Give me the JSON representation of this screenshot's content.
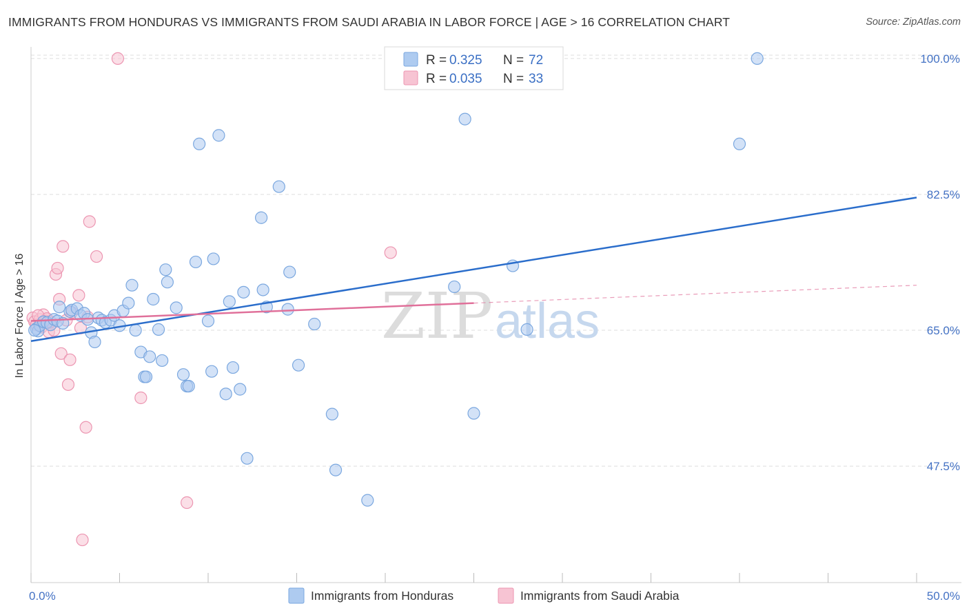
{
  "header": {
    "title": "IMMIGRANTS FROM HONDURAS VS IMMIGRANTS FROM SAUDI ARABIA IN LABOR FORCE | AGE > 16 CORRELATION CHART",
    "source": "Source: ZipAtlas.com"
  },
  "watermark": {
    "zip": "ZIP",
    "atlas": "atlas"
  },
  "legend_top": {
    "r_label": "R =",
    "n_label": "N =",
    "rows": [
      {
        "r": "0.325",
        "n": "72"
      },
      {
        "r": "0.035",
        "n": "33"
      }
    ]
  },
  "chart_data": {
    "type": "scatter",
    "title": "IMMIGRANTS FROM HONDURAS VS IMMIGRANTS FROM SAUDI ARABIA IN LABOR FORCE | AGE > 16 CORRELATION CHART",
    "xlabel": "",
    "ylabel": "In Labor Force | Age > 16",
    "xlim": [
      0,
      50
    ],
    "ylim": [
      32.5,
      101.5
    ],
    "x_tick_labels": [
      "0.0%",
      "50.0%"
    ],
    "y_ticks": [
      47.5,
      65.0,
      82.5,
      100.0
    ],
    "y_tick_labels": [
      "47.5%",
      "65.0%",
      "82.5%",
      "100.0%"
    ],
    "grid": true,
    "legend_position": "top-center",
    "colors": {
      "honduras_fill": "#aecbf0",
      "honduras_stroke": "#7aa7df",
      "honduras_line": "#2a6dcb",
      "saudi_fill": "#f7c4d3",
      "saudi_stroke": "#ec95b1",
      "saudi_line": "#e0709a"
    },
    "series": [
      {
        "name": "Immigrants from Honduras",
        "r": 0.325,
        "n": 72,
        "trend": {
          "x": [
            0,
            50
          ],
          "y": [
            63.6,
            82.1
          ]
        },
        "points": [
          [
            0.3,
            65.2
          ],
          [
            0.4,
            64.9
          ],
          [
            0.5,
            65.6
          ],
          [
            0.7,
            66.1
          ],
          [
            0.9,
            66.0
          ],
          [
            1.1,
            65.7
          ],
          [
            1.3,
            66.4
          ],
          [
            1.5,
            66.2
          ],
          [
            1.6,
            68.0
          ],
          [
            1.8,
            65.9
          ],
          [
            2.2,
            67.4
          ],
          [
            2.3,
            67.6
          ],
          [
            2.6,
            67.8
          ],
          [
            2.8,
            66.9
          ],
          [
            3.0,
            67.2
          ],
          [
            3.2,
            66.4
          ],
          [
            3.4,
            64.7
          ],
          [
            3.6,
            63.5
          ],
          [
            3.8,
            66.6
          ],
          [
            4.0,
            66.3
          ],
          [
            4.2,
            66.0
          ],
          [
            4.5,
            66.3
          ],
          [
            4.7,
            66.9
          ],
          [
            5.0,
            65.6
          ],
          [
            5.2,
            67.5
          ],
          [
            5.5,
            68.5
          ],
          [
            5.7,
            70.8
          ],
          [
            5.9,
            65.0
          ],
          [
            6.2,
            62.2
          ],
          [
            6.4,
            59.0
          ],
          [
            6.5,
            59.0
          ],
          [
            6.7,
            61.6
          ],
          [
            6.9,
            69.0
          ],
          [
            7.2,
            65.1
          ],
          [
            7.4,
            61.1
          ],
          [
            7.6,
            72.8
          ],
          [
            7.7,
            71.2
          ],
          [
            8.2,
            67.9
          ],
          [
            8.6,
            59.3
          ],
          [
            8.8,
            57.8
          ],
          [
            8.9,
            57.8
          ],
          [
            9.3,
            73.8
          ],
          [
            9.5,
            89.0
          ],
          [
            10.0,
            66.2
          ],
          [
            10.2,
            59.7
          ],
          [
            10.3,
            74.2
          ],
          [
            10.6,
            90.1
          ],
          [
            11.0,
            56.8
          ],
          [
            11.2,
            68.7
          ],
          [
            11.4,
            60.2
          ],
          [
            11.8,
            57.4
          ],
          [
            12.0,
            69.9
          ],
          [
            12.2,
            48.5
          ],
          [
            13.0,
            79.5
          ],
          [
            13.1,
            70.2
          ],
          [
            13.3,
            68.0
          ],
          [
            14.0,
            83.5
          ],
          [
            14.5,
            67.7
          ],
          [
            14.6,
            72.5
          ],
          [
            15.1,
            60.5
          ],
          [
            16.0,
            65.8
          ],
          [
            17.0,
            54.2
          ],
          [
            17.2,
            47.0
          ],
          [
            19.0,
            43.1
          ],
          [
            23.9,
            70.6
          ],
          [
            24.5,
            92.2
          ],
          [
            25.0,
            54.3
          ],
          [
            27.2,
            73.3
          ],
          [
            28.0,
            65.1
          ],
          [
            40.0,
            89.0
          ],
          [
            41.0,
            100.0
          ],
          [
            0.2,
            65.0
          ]
        ]
      },
      {
        "name": "Immigrants from Saudi Arabia",
        "r": 0.035,
        "n": 33,
        "trend": {
          "x": [
            0,
            50
          ],
          "y": [
            66.2,
            70.8
          ]
        },
        "trend_solid_until_x": 25,
        "points": [
          [
            0.1,
            66.6
          ],
          [
            0.2,
            66.1
          ],
          [
            0.3,
            65.7
          ],
          [
            0.5,
            66.4
          ],
          [
            0.6,
            65.4
          ],
          [
            0.7,
            67.0
          ],
          [
            0.8,
            66.2
          ],
          [
            0.9,
            66.5
          ],
          [
            1.0,
            64.8
          ],
          [
            1.2,
            65.9
          ],
          [
            1.3,
            65.0
          ],
          [
            1.4,
            72.2
          ],
          [
            1.5,
            73.0
          ],
          [
            1.6,
            69.0
          ],
          [
            1.7,
            62.0
          ],
          [
            1.8,
            75.8
          ],
          [
            2.0,
            66.3
          ],
          [
            2.1,
            58.0
          ],
          [
            2.2,
            61.2
          ],
          [
            2.3,
            67.3
          ],
          [
            2.7,
            69.5
          ],
          [
            2.8,
            65.3
          ],
          [
            2.9,
            38.0
          ],
          [
            3.1,
            52.5
          ],
          [
            3.2,
            66.7
          ],
          [
            3.3,
            79.0
          ],
          [
            3.7,
            74.5
          ],
          [
            4.9,
            100.0
          ],
          [
            6.2,
            56.3
          ],
          [
            8.8,
            42.8
          ],
          [
            20.3,
            75.0
          ],
          [
            0.4,
            66.9
          ],
          [
            1.1,
            66.1
          ]
        ]
      }
    ]
  },
  "legend_bottom": {
    "items": [
      {
        "label": "Immigrants from Honduras"
      },
      {
        "label": "Immigrants from Saudi Arabia"
      }
    ]
  }
}
